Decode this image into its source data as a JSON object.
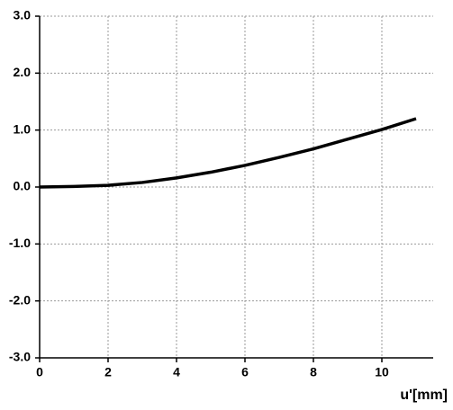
{
  "chart_data": {
    "type": "line",
    "x": [
      0,
      1,
      2,
      3,
      4,
      5,
      6,
      7,
      8,
      9,
      10,
      11
    ],
    "series": [
      {
        "color": "#000000",
        "values": [
          0,
          0.01,
          0.03,
          0.08,
          0.16,
          0.26,
          0.38,
          0.52,
          0.67,
          0.84,
          1.01,
          1.2
        ]
      }
    ],
    "xlabel": "u'[mm]",
    "xlim": [
      0,
      11.5
    ],
    "xticks": [
      0,
      2,
      4,
      6,
      8,
      10
    ],
    "ylim": [
      -3,
      3
    ],
    "yticks": [
      {
        "value": -3,
        "label": "-3.0"
      },
      {
        "value": -2,
        "label": "-2.0"
      },
      {
        "value": -1,
        "label": "-1.0"
      },
      {
        "value": 0,
        "label": "0.0"
      },
      {
        "value": 1,
        "label": "1.0"
      },
      {
        "value": 2,
        "label": "2.0"
      },
      {
        "value": 3,
        "label": "3.0"
      }
    ],
    "grid": true
  }
}
